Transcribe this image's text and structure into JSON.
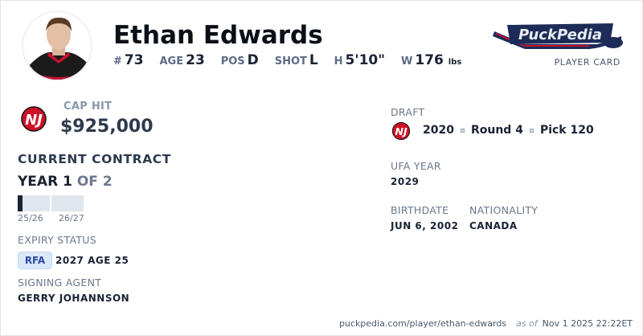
{
  "player": {
    "name": "Ethan Edwards",
    "number": "73",
    "age": "23",
    "position": "D",
    "shot": "L",
    "height": "5'10\"",
    "weight": "176",
    "weight_unit": "lbs"
  },
  "labels": {
    "number": "#",
    "age": "AGE",
    "position": "POS",
    "shot": "SHOT",
    "height": "H",
    "weight": "W"
  },
  "brand": {
    "logo_text": "PuckPedia",
    "subtitle": "PLAYER CARD"
  },
  "team": {
    "logo": "new-jersey-devils-logo",
    "color": "#ce1126"
  },
  "contract": {
    "cap_hit_label": "CAP HIT",
    "cap_hit": "$925,000",
    "title": "CURRENT CONTRACT",
    "year_label": "YEAR 1",
    "of_label": "OF 2",
    "progress_in_current_year": 0.15,
    "seasons": [
      "25/26",
      "26/27"
    ]
  },
  "expiry": {
    "label": "EXPIRY STATUS",
    "status": "RFA",
    "detail": "2027 AGE 25",
    "status_color": "#2c4aa0"
  },
  "agent": {
    "label": "SIGNING AGENT",
    "name": "GERRY JOHANNSON"
  },
  "draft": {
    "label": "DRAFT",
    "year": "2020",
    "round": "Round 4",
    "pick": "Pick 120"
  },
  "ufa": {
    "label": "UFA YEAR",
    "year": "2029"
  },
  "birth": {
    "label": "BIRTHDATE",
    "date": "JUN 6, 2002"
  },
  "nationality": {
    "label": "NATIONALITY",
    "value": "CANADA"
  },
  "footer": {
    "url": "puckpedia.com/player/ethan-edwards",
    "as_of": "as of",
    "timestamp": "Nov 1 2025 22:22ET"
  }
}
